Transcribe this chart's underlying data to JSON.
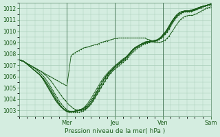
{
  "xlabel": "Pression niveau de la mer( hPa )",
  "ylim": [
    1002.5,
    1012.5
  ],
  "yticks": [
    1003,
    1004,
    1005,
    1006,
    1007,
    1008,
    1009,
    1010,
    1011,
    1012
  ],
  "bg_color": "#d4ede0",
  "grid_color": "#a8ccb8",
  "line_color": "#1a5c1a",
  "day_labels": [
    "Mer",
    "Jeu",
    "Ven",
    "Sam"
  ],
  "day_positions": [
    0.25,
    0.5,
    0.75,
    1.0
  ],
  "num_steps": 97,
  "series": [
    [
      1007.5,
      1007.4,
      1007.35,
      1007.25,
      1007.15,
      1007.05,
      1006.95,
      1006.85,
      1006.75,
      1006.65,
      1006.55,
      1006.45,
      1006.35,
      1006.25,
      1006.15,
      1006.05,
      1005.95,
      1005.85,
      1005.75,
      1005.65,
      1005.55,
      1005.45,
      1005.35,
      1005.25,
      1005.2,
      1006.5,
      1007.8,
      1008.0,
      1008.1,
      1008.2,
      1008.3,
      1008.4,
      1008.5,
      1008.55,
      1008.6,
      1008.65,
      1008.7,
      1008.75,
      1008.8,
      1008.85,
      1008.9,
      1009.0,
      1009.05,
      1009.1,
      1009.15,
      1009.2,
      1009.25,
      1009.3,
      1009.35,
      1009.35,
      1009.4,
      1009.4,
      1009.4,
      1009.4,
      1009.4,
      1009.4,
      1009.4,
      1009.4,
      1009.4,
      1009.4,
      1009.4,
      1009.4,
      1009.4,
      1009.4,
      1009.3,
      1009.25,
      1009.2,
      1009.1,
      1009.0,
      1009.0,
      1009.0,
      1009.05,
      1009.1,
      1009.2,
      1009.35,
      1009.55,
      1009.8,
      1010.05,
      1010.35,
      1010.6,
      1010.85,
      1011.05,
      1011.2,
      1011.3,
      1011.35,
      1011.4,
      1011.4,
      1011.4,
      1011.5,
      1011.55,
      1011.65,
      1011.75,
      1011.85,
      1011.95,
      1012.05,
      1012.1,
      1012.15
    ],
    [
      1007.5,
      1007.4,
      1007.35,
      1007.25,
      1007.15,
      1007.05,
      1006.95,
      1006.85,
      1006.75,
      1006.65,
      1006.55,
      1006.45,
      1006.3,
      1006.15,
      1006.0,
      1005.8,
      1005.6,
      1005.35,
      1005.1,
      1004.85,
      1004.6,
      1004.35,
      1004.1,
      1003.9,
      1003.7,
      1003.5,
      1003.35,
      1003.2,
      1003.1,
      1003.05,
      1003.0,
      1003.0,
      1003.05,
      1003.1,
      1003.2,
      1003.35,
      1003.55,
      1003.8,
      1004.1,
      1004.4,
      1004.7,
      1005.0,
      1005.3,
      1005.6,
      1005.9,
      1006.15,
      1006.4,
      1006.6,
      1006.8,
      1006.95,
      1007.1,
      1007.25,
      1007.4,
      1007.55,
      1007.7,
      1007.9,
      1008.1,
      1008.3,
      1008.5,
      1008.65,
      1008.75,
      1008.85,
      1008.95,
      1009.05,
      1009.1,
      1009.1,
      1009.15,
      1009.15,
      1009.2,
      1009.2,
      1009.25,
      1009.35,
      1009.5,
      1009.7,
      1009.9,
      1010.15,
      1010.45,
      1010.75,
      1011.0,
      1011.25,
      1011.45,
      1011.55,
      1011.65,
      1011.7,
      1011.75,
      1011.75,
      1011.75,
      1011.8,
      1011.85,
      1011.9,
      1012.0,
      1012.05,
      1012.15,
      1012.2,
      1012.25,
      1012.3,
      1012.3
    ],
    [
      1007.5,
      1007.4,
      1007.35,
      1007.25,
      1007.15,
      1007.05,
      1006.95,
      1006.85,
      1006.7,
      1006.55,
      1006.4,
      1006.25,
      1006.05,
      1005.85,
      1005.6,
      1005.35,
      1005.05,
      1004.75,
      1004.45,
      1004.15,
      1003.85,
      1003.6,
      1003.4,
      1003.2,
      1003.05,
      1002.95,
      1002.9,
      1002.85,
      1002.85,
      1002.85,
      1002.85,
      1002.9,
      1002.95,
      1003.05,
      1003.2,
      1003.4,
      1003.65,
      1003.95,
      1004.25,
      1004.6,
      1004.95,
      1005.3,
      1005.6,
      1005.9,
      1006.15,
      1006.4,
      1006.6,
      1006.8,
      1006.95,
      1007.1,
      1007.25,
      1007.4,
      1007.55,
      1007.65,
      1007.8,
      1008.0,
      1008.2,
      1008.4,
      1008.55,
      1008.65,
      1008.75,
      1008.85,
      1008.95,
      1009.0,
      1009.05,
      1009.1,
      1009.1,
      1009.15,
      1009.15,
      1009.2,
      1009.3,
      1009.45,
      1009.6,
      1009.8,
      1010.05,
      1010.3,
      1010.6,
      1010.9,
      1011.15,
      1011.35,
      1011.5,
      1011.6,
      1011.7,
      1011.75,
      1011.75,
      1011.75,
      1011.8,
      1011.85,
      1011.9,
      1011.95,
      1012.05,
      1012.1,
      1012.15,
      1012.2,
      1012.25,
      1012.3,
      1012.35
    ],
    [
      1007.5,
      1007.4,
      1007.35,
      1007.25,
      1007.1,
      1006.95,
      1006.8,
      1006.65,
      1006.5,
      1006.35,
      1006.2,
      1006.05,
      1005.85,
      1005.65,
      1005.4,
      1005.15,
      1004.85,
      1004.55,
      1004.25,
      1003.95,
      1003.65,
      1003.4,
      1003.2,
      1003.0,
      1002.9,
      1002.85,
      1002.85,
      1002.9,
      1002.95,
      1003.0,
      1003.05,
      1003.1,
      1003.15,
      1003.2,
      1003.3,
      1003.45,
      1003.65,
      1003.9,
      1004.15,
      1004.45,
      1004.75,
      1005.05,
      1005.35,
      1005.6,
      1005.85,
      1006.1,
      1006.3,
      1006.5,
      1006.65,
      1006.8,
      1006.95,
      1007.1,
      1007.25,
      1007.4,
      1007.55,
      1007.75,
      1007.95,
      1008.15,
      1008.3,
      1008.45,
      1008.6,
      1008.7,
      1008.8,
      1008.9,
      1008.95,
      1009.0,
      1009.05,
      1009.05,
      1009.1,
      1009.15,
      1009.25,
      1009.4,
      1009.55,
      1009.75,
      1010.0,
      1010.25,
      1010.55,
      1010.85,
      1011.1,
      1011.3,
      1011.45,
      1011.55,
      1011.65,
      1011.7,
      1011.7,
      1011.7,
      1011.75,
      1011.8,
      1011.85,
      1011.9,
      1012.0,
      1012.05,
      1012.15,
      1012.2,
      1012.25,
      1012.3,
      1012.35
    ],
    [
      1007.5,
      1007.4,
      1007.35,
      1007.25,
      1007.1,
      1006.95,
      1006.8,
      1006.65,
      1006.5,
      1006.35,
      1006.2,
      1006.0,
      1005.8,
      1005.55,
      1005.3,
      1005.0,
      1004.7,
      1004.4,
      1004.1,
      1003.8,
      1003.55,
      1003.35,
      1003.15,
      1003.0,
      1002.9,
      1002.85,
      1002.85,
      1002.9,
      1002.95,
      1003.0,
      1003.05,
      1003.1,
      1003.15,
      1003.25,
      1003.4,
      1003.6,
      1003.85,
      1004.1,
      1004.4,
      1004.7,
      1005.0,
      1005.3,
      1005.6,
      1005.85,
      1006.1,
      1006.3,
      1006.5,
      1006.65,
      1006.8,
      1006.95,
      1007.1,
      1007.25,
      1007.4,
      1007.55,
      1007.7,
      1007.9,
      1008.1,
      1008.3,
      1008.45,
      1008.6,
      1008.7,
      1008.8,
      1008.9,
      1008.95,
      1009.0,
      1009.05,
      1009.1,
      1009.1,
      1009.15,
      1009.2,
      1009.3,
      1009.45,
      1009.65,
      1009.85,
      1010.1,
      1010.4,
      1010.7,
      1011.0,
      1011.25,
      1011.45,
      1011.6,
      1011.7,
      1011.75,
      1011.8,
      1011.8,
      1011.8,
      1011.85,
      1011.9,
      1011.95,
      1012.0,
      1012.1,
      1012.15,
      1012.2,
      1012.25,
      1012.3,
      1012.35,
      1012.4
    ],
    [
      1007.5,
      1007.4,
      1007.35,
      1007.25,
      1007.1,
      1006.95,
      1006.8,
      1006.65,
      1006.5,
      1006.35,
      1006.2,
      1006.0,
      1005.75,
      1005.5,
      1005.2,
      1004.9,
      1004.6,
      1004.3,
      1004.0,
      1003.75,
      1003.5,
      1003.3,
      1003.15,
      1003.05,
      1002.95,
      1002.9,
      1002.9,
      1002.9,
      1002.9,
      1002.95,
      1003.0,
      1003.05,
      1003.15,
      1003.25,
      1003.4,
      1003.6,
      1003.85,
      1004.1,
      1004.4,
      1004.7,
      1005.0,
      1005.3,
      1005.6,
      1005.85,
      1006.1,
      1006.3,
      1006.5,
      1006.65,
      1006.8,
      1006.95,
      1007.1,
      1007.25,
      1007.4,
      1007.55,
      1007.7,
      1007.9,
      1008.1,
      1008.3,
      1008.45,
      1008.6,
      1008.7,
      1008.8,
      1008.9,
      1008.95,
      1009.0,
      1009.05,
      1009.1,
      1009.1,
      1009.15,
      1009.2,
      1009.3,
      1009.45,
      1009.65,
      1009.85,
      1010.1,
      1010.4,
      1010.7,
      1011.0,
      1011.25,
      1011.45,
      1011.6,
      1011.7,
      1011.75,
      1011.8,
      1011.8,
      1011.8,
      1011.85,
      1011.9,
      1011.95,
      1012.0,
      1012.1,
      1012.15,
      1012.2,
      1012.25,
      1012.3,
      1012.35,
      1012.4
    ],
    [
      1007.5,
      1007.4,
      1007.35,
      1007.25,
      1007.1,
      1006.95,
      1006.8,
      1006.65,
      1006.5,
      1006.35,
      1006.2,
      1006.0,
      1005.75,
      1005.45,
      1005.15,
      1004.85,
      1004.55,
      1004.25,
      1003.95,
      1003.7,
      1003.5,
      1003.3,
      1003.15,
      1003.05,
      1002.95,
      1002.9,
      1002.9,
      1002.9,
      1002.95,
      1003.0,
      1003.05,
      1003.1,
      1003.2,
      1003.35,
      1003.55,
      1003.8,
      1004.05,
      1004.35,
      1004.65,
      1004.95,
      1005.25,
      1005.55,
      1005.8,
      1006.05,
      1006.25,
      1006.45,
      1006.6,
      1006.75,
      1006.9,
      1007.05,
      1007.2,
      1007.35,
      1007.5,
      1007.65,
      1007.8,
      1008.0,
      1008.2,
      1008.4,
      1008.55,
      1008.65,
      1008.75,
      1008.85,
      1008.95,
      1009.0,
      1009.05,
      1009.1,
      1009.15,
      1009.15,
      1009.2,
      1009.25,
      1009.35,
      1009.5,
      1009.7,
      1009.9,
      1010.15,
      1010.45,
      1010.75,
      1011.0,
      1011.25,
      1011.45,
      1011.6,
      1011.7,
      1011.75,
      1011.8,
      1011.8,
      1011.8,
      1011.85,
      1011.9,
      1011.95,
      1012.0,
      1012.1,
      1012.15,
      1012.2,
      1012.25,
      1012.3,
      1012.35,
      1012.4
    ]
  ]
}
